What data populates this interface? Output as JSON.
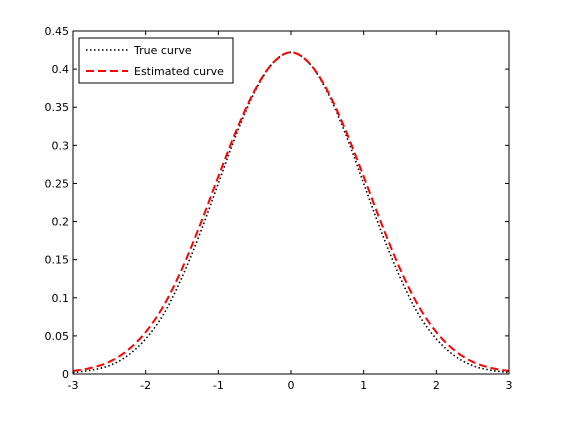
{
  "chart_data": {
    "type": "line",
    "title": "",
    "xlabel": "",
    "ylabel": "",
    "xlim": [
      -3,
      3
    ],
    "ylim": [
      0,
      0.45
    ],
    "xticks": [
      "-3",
      "-2",
      "-1",
      "0",
      "1",
      "2",
      "3"
    ],
    "yticks": [
      "0",
      "0.05",
      "0.1",
      "0.15",
      "0.2",
      "0.25",
      "0.3",
      "0.35",
      "0.4",
      "0.45"
    ],
    "grid": false,
    "legend_position": "top-left",
    "series": [
      {
        "name": "True curve",
        "color": "#000000",
        "style": "dotted",
        "x": [
          -3,
          -2.75,
          -2.5,
          -2.25,
          -2,
          -1.75,
          -1.5,
          -1.25,
          -1,
          -0.75,
          -0.5,
          -0.25,
          0,
          0.25,
          0.5,
          0.75,
          1,
          1.25,
          1.5,
          1.75,
          2,
          2.25,
          2.5,
          2.75,
          3
        ],
        "y": [
          0.002,
          0.005,
          0.011,
          0.024,
          0.046,
          0.079,
          0.127,
          0.185,
          0.25,
          0.315,
          0.37,
          0.408,
          0.422,
          0.408,
          0.37,
          0.315,
          0.25,
          0.185,
          0.127,
          0.079,
          0.046,
          0.024,
          0.011,
          0.005,
          0.002
        ]
      },
      {
        "name": "Estimated curve",
        "color": "#ff0000",
        "style": "dashed",
        "x": [
          -3,
          -2.75,
          -2.5,
          -2.25,
          -2,
          -1.75,
          -1.5,
          -1.25,
          -1,
          -0.75,
          -0.5,
          -0.25,
          0,
          0.25,
          0.5,
          0.75,
          1,
          1.25,
          1.5,
          1.75,
          2,
          2.25,
          2.5,
          2.75,
          3
        ],
        "y": [
          0.004,
          0.008,
          0.016,
          0.031,
          0.055,
          0.09,
          0.138,
          0.196,
          0.259,
          0.32,
          0.372,
          0.408,
          0.422,
          0.408,
          0.372,
          0.32,
          0.259,
          0.196,
          0.138,
          0.09,
          0.055,
          0.031,
          0.016,
          0.008,
          0.004
        ]
      }
    ]
  }
}
